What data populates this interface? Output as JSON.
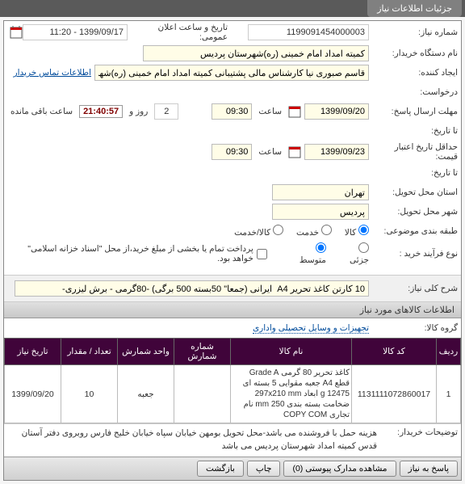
{
  "tabs": {
    "main": "جزئیات اطلاعات نیاز"
  },
  "header": {
    "need_no_label": "شماره نیاز:",
    "need_no": "1199091454000003",
    "announce_label": "تاریخ و ساعت اعلان عمومی:",
    "announce_value": "1399/09/17 - 11:20",
    "buyer_org_label": "نام دستگاه خریدار:",
    "buyer_org": "کمیته امداد امام خمینی (ره)شهرستان پردیس",
    "creator_label": "ایجاد کننده:",
    "creator": "قاسم صبوری نیا کارشناس مالی پشتیبانی کمیته امداد امام خمینی (ره)شهرس",
    "contact_link": "اطلاعات تماس خریدار",
    "request_label": "درخواست:",
    "deadline_label": "مهلت ارسال پاسخ:",
    "to_date_label": "تا تاریخ:",
    "deadline_date": "1399/09/20",
    "time_label": "ساعت",
    "deadline_time": "09:30",
    "days_remaining": "2",
    "and_label": "روز و",
    "timer": "21:40:57",
    "remain_label": "ساعت باقی مانده",
    "min_validity_label": "حداقل تاریخ اعتبار قیمت:",
    "min_validity_date": "1399/09/23",
    "min_validity_time": "09:30",
    "deliver_province_label": "استان محل تحویل:",
    "deliver_province": "تهران",
    "deliver_city_label": "شهر محل تحویل:",
    "deliver_city": "پردیس",
    "budget_class_label": "طبقه بندی موضوعی:",
    "radio_goods": "کالا",
    "radio_service": "خدمت",
    "radio_goods_service": "کالا/خدمت",
    "buy_type_label": "نوع فرآیند خرید :",
    "radio_small": "جزئی",
    "radio_medium": "متوسط",
    "treasury_note": "پرداخت تمام یا بخشی از مبلغ خرید،از محل \"اسناد خزانه اسلامی\" خواهد بود.",
    "treasury_checkbox": false
  },
  "desc": {
    "label": "شرح کلی نیاز:",
    "value": "10 کارتن کاغذ تحریر A4  ایرانی (جمعا\" 50بسته 500 برگی) -80گرمی - برش لیزری-"
  },
  "items_section": {
    "title": "اطلاعات کالاهای مورد نیاز",
    "group_label": "گروه کالا:",
    "group_value": "تجهیزات و وسایل تحصیلی واداری",
    "columns": {
      "row": "ردیف",
      "code": "کد کالا",
      "name": "نام کالا",
      "count": "شماره شمارش",
      "unit": "واحد شمارش",
      "qty": "تعداد / مقدار",
      "date": "تاریخ نیاز"
    },
    "rows": [
      {
        "n": "1",
        "code": "1131111072860017",
        "name": "کاغذ تحریر 80 گرمی Grade A قطع A4 جعبه مقوایی 5 بسته ای 12475 g ابعاد 297x210 mm ضخامت بسته بندی 250 mm نام تجاری COPY COM",
        "count": "",
        "unit": "جعبه",
        "qty": "10",
        "date": "1399/09/20"
      }
    ]
  },
  "buyer_note": {
    "label": "توضیحات خریدار:",
    "text": "هزینه حمل با فروشنده می باشد-محل تحویل بومهن خیابان سپاه خیابان خلیج فارس روبروی دفتر آستان قدس کمیته امداد شهرستان پردیس می باشد"
  },
  "footer": {
    "respond": "پاسخ به نیاز",
    "attachments": "مشاهده مدارک پیوستی (0)",
    "print": "چاپ",
    "back": "بازگشت"
  },
  "colors": {
    "tab_bg": "#808080",
    "th_bg": "#40043a",
    "input_bg": "#fffde7",
    "timer_color": "#800000"
  }
}
